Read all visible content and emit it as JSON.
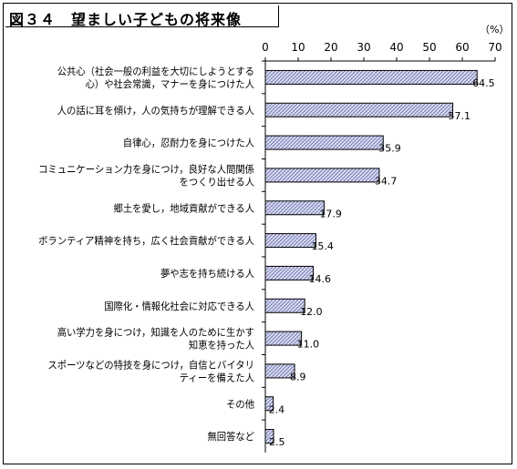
{
  "title": "図３４　望ましい子どもの将来像",
  "chart_data": {
    "type": "bar",
    "orientation": "horizontal",
    "unit": "（%）",
    "xlim": [
      0,
      70
    ],
    "ticks": [
      "0",
      "10",
      "20",
      "30",
      "40",
      "50",
      "60",
      "70"
    ],
    "grid": false,
    "categories": [
      [
        "公共心（社会一般の利益を大切にしようとする",
        "心）や社会常識，マナーを身につけた人"
      ],
      [
        "人の話に耳を傾け，人の気持ちが理解できる人"
      ],
      [
        "自律心，忍耐力を身につけた人"
      ],
      [
        "コミュニケーション力を身につけ，良好な人間関係",
        "をつくり出せる人"
      ],
      [
        "郷土を愛し，地域貢献ができる人"
      ],
      [
        "ボランティア精神を持ち，広く社会貢献ができる人"
      ],
      [
        "夢や志を持ち続ける人"
      ],
      [
        "国際化・情報化社会に対応できる人"
      ],
      [
        "高い学力を身につけ，知識を人のために生かす",
        "知恵を持った人"
      ],
      [
        "スポーツなどの特技を身につけ，自信とバイタリ",
        "ティーを備えた人"
      ],
      [
        "その他"
      ],
      [
        "無回答など"
      ]
    ],
    "values": [
      64.5,
      57.1,
      35.9,
      34.7,
      17.9,
      15.4,
      14.6,
      12.0,
      11.0,
      8.9,
      2.4,
      2.5
    ],
    "labels": [
      "64.5",
      "57.1",
      "35.9",
      "34.7",
      "17.9",
      "15.4",
      "14.6",
      "12.0",
      "11.0",
      "8.9",
      "2.4",
      "2.5"
    ],
    "bar_fill": "#c9cde8",
    "bar_stroke": "#000000"
  }
}
